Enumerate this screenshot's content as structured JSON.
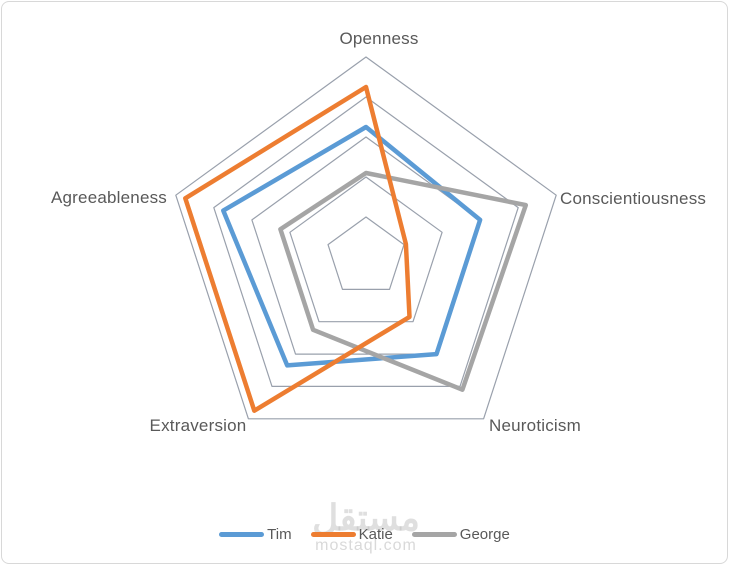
{
  "chart_data": {
    "type": "radar",
    "title": "",
    "categories": [
      "Openness",
      "Conscientiousness",
      "Neuroticism",
      "Extraversion",
      "Agreeableness"
    ],
    "series": [
      {
        "name": "Tim",
        "color": "#5B9BD5",
        "values": [
          3.25,
          3.0,
          3.0,
          3.35,
          3.75
        ]
      },
      {
        "name": "Katie",
        "color": "#ED7D31",
        "values": [
          4.25,
          1.05,
          1.85,
          4.75,
          4.75
        ]
      },
      {
        "name": "George",
        "color": "#A5A5A5",
        "values": [
          2.1,
          4.2,
          4.1,
          2.25,
          2.25
        ]
      }
    ],
    "rmax": 5,
    "ring_count": 5,
    "gridline_color": "#99A0AC",
    "label_color": "#595959",
    "legend_position": "bottom"
  },
  "watermark": {
    "arabic": "مستقل",
    "domain": "mostaql.com"
  }
}
